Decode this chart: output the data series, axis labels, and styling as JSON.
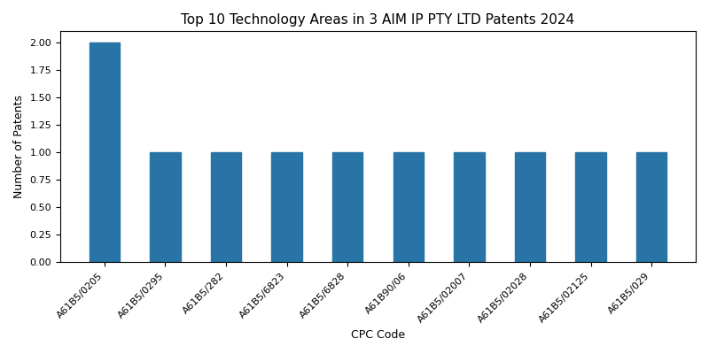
{
  "title": "Top 10 Technology Areas in 3 AIM IP PTY LTD Patents 2024",
  "xlabel": "CPC Code",
  "ylabel": "Number of Patents",
  "categories": [
    "A61B5/0205",
    "A61B5/0295",
    "A61B5/282",
    "A61B5/6823",
    "A61B5/6828",
    "A61B90/06",
    "A61B5/02007",
    "A61B5/02028",
    "A61B5/02125",
    "A61B5/029"
  ],
  "values": [
    2,
    1,
    1,
    1,
    1,
    1,
    1,
    1,
    1,
    1
  ],
  "bar_color": "#2874a6",
  "bar_width": 0.5,
  "ylim": [
    0,
    2.1
  ],
  "yticks": [
    0.0,
    0.25,
    0.5,
    0.75,
    1.0,
    1.25,
    1.5,
    1.75,
    2.0
  ],
  "figsize": [
    8.0,
    4.0
  ],
  "dpi": 100,
  "title_fontsize": 11,
  "label_fontsize": 9,
  "tick_fontsize": 8,
  "xtick_rotation": 45
}
